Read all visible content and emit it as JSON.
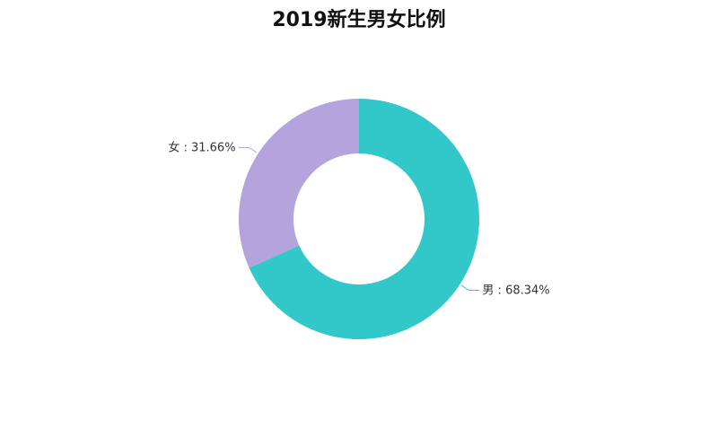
{
  "chart_data": {
    "type": "pie",
    "title": "2019新生男女比例",
    "series": [
      {
        "slices": [
          {
            "label": "男",
            "value": 68.34,
            "display": "男 : 68.34%",
            "color": "#32c7c9"
          },
          {
            "label": "女",
            "value": 31.66,
            "display": "女 : 31.66%",
            "color": "#b4a3dc"
          }
        ]
      }
    ],
    "start_angle_deg": 90,
    "direction": "clockwise",
    "donut": true,
    "legend": "none",
    "grid": false
  }
}
